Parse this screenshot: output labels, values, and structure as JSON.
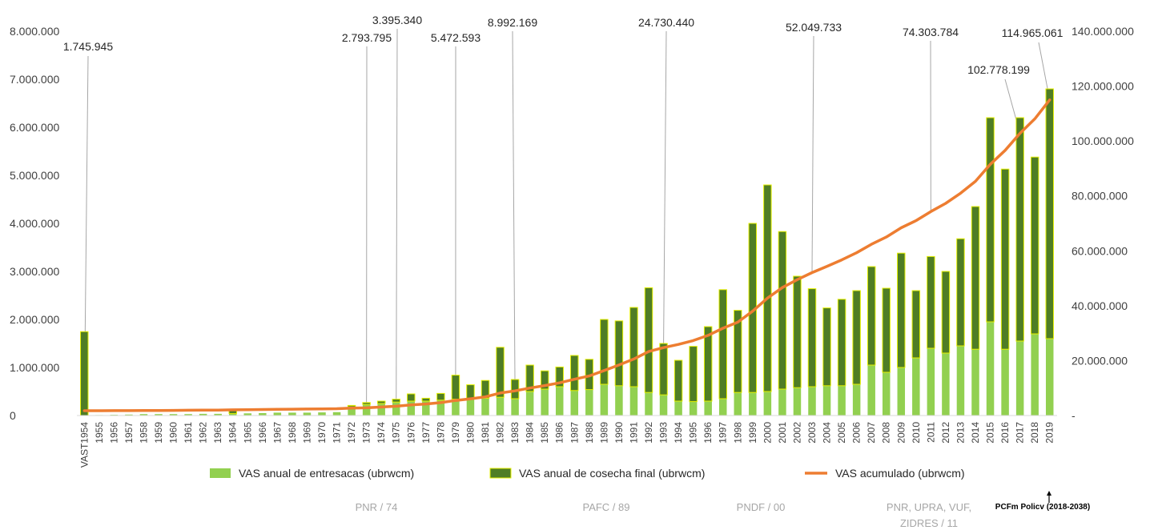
{
  "colors": {
    "entresacas": "#92d050",
    "cosecha": "#4f7d25",
    "cosecha_border": "#e6f000",
    "acumulado": "#ed7d31",
    "callout_line": "#a6a6a6"
  },
  "chart_data": {
    "type": "bar",
    "categories": [
      "VAST1954",
      "1955",
      "1956",
      "1957",
      "1958",
      "1959",
      "1960",
      "1961",
      "1962",
      "1963",
      "1964",
      "1965",
      "1966",
      "1967",
      "1968",
      "1969",
      "1970",
      "1971",
      "1972",
      "1973",
      "1974",
      "1975",
      "1976",
      "1977",
      "1978",
      "1979",
      "1980",
      "1981",
      "1982",
      "1983",
      "1984",
      "1985",
      "1986",
      "1987",
      "1988",
      "1989",
      "1990",
      "1991",
      "1992",
      "1993",
      "1994",
      "1995",
      "1996",
      "1997",
      "1998",
      "1999",
      "2000",
      "2001",
      "2002",
      "2003",
      "2004",
      "2005",
      "2006",
      "2007",
      "2008",
      "2009",
      "2010",
      "2011",
      "2012",
      "2013",
      "2014",
      "2015",
      "2016",
      "2017",
      "2018",
      "2019"
    ],
    "series": [
      {
        "name": "VAS anual de entresacas (ubrwcm)",
        "type": "bar",
        "axis": "left",
        "values": [
          0,
          10000,
          15000,
          20000,
          30000,
          30000,
          30000,
          30000,
          35000,
          35000,
          40000,
          45000,
          50000,
          60000,
          60000,
          60000,
          65000,
          70000,
          180000,
          230000,
          250000,
          280000,
          300000,
          300000,
          320000,
          340000,
          360000,
          360000,
          380000,
          350000,
          500000,
          550000,
          600000,
          520000,
          540000,
          650000,
          620000,
          600000,
          480000,
          430000,
          300000,
          290000,
          300000,
          350000,
          480000,
          480000,
          500000,
          550000,
          580000,
          600000,
          620000,
          620000,
          650000,
          1050000,
          900000,
          1000000,
          1200000,
          1400000,
          1300000,
          1450000,
          1380000,
          1950000,
          1380000,
          1550000,
          1700000,
          1600000
        ]
      },
      {
        "name": "VAS anual  de cosecha final (ubrwcm)",
        "type": "bar",
        "axis": "left",
        "values": [
          1745945,
          0,
          0,
          0,
          0,
          0,
          0,
          0,
          0,
          0,
          60000,
          0,
          0,
          0,
          0,
          0,
          0,
          0,
          30000,
          40000,
          50000,
          60000,
          150000,
          60000,
          140000,
          500000,
          280000,
          370000,
          1040000,
          400000,
          550000,
          380000,
          410000,
          730000,
          630000,
          1350000,
          1350000,
          1650000,
          2180000,
          1070000,
          850000,
          1150000,
          1550000,
          2270000,
          1710000,
          3520000,
          4300000,
          3280000,
          2320000,
          2040000,
          1620000,
          1800000,
          1950000,
          2050000,
          1750000,
          2380000,
          1400000,
          1910000,
          1700000,
          2230000,
          2970000,
          4250000,
          3750000,
          4650000,
          3680000,
          5200000
        ]
      },
      {
        "name": "VAS acumulado (ubrwcm)",
        "type": "line",
        "axis": "right",
        "values": [
          1745945,
          1755945,
          1770945,
          1790945,
          1820945,
          1850945,
          1880945,
          1910945,
          1945945,
          1980945,
          2080945,
          2125945,
          2175945,
          2235945,
          2295945,
          2355945,
          2420945,
          2490945,
          2700945,
          2793795,
          3093795,
          3395340,
          3850000,
          4200000,
          4700000,
          5472593,
          6100000,
          6800000,
          8200000,
          8992169,
          10000000,
          10900000,
          11900000,
          13200000,
          14400000,
          16400000,
          18400000,
          20600000,
          23300000,
          24730440,
          25900000,
          27300000,
          29200000,
          31800000,
          34000000,
          38000000,
          42800000,
          46600000,
          49500000,
          52049733,
          54300000,
          56700000,
          59300000,
          62400000,
          65000000,
          68400000,
          71000000,
          74303784,
          77300000,
          81000000,
          85300000,
          91500000,
          96600000,
          102778199,
          108100000,
          114965061
        ]
      }
    ],
    "y_left": {
      "min": 0,
      "max": 8000000,
      "ticks": [
        "0",
        "1.000.000",
        "2.000.000",
        "3.000.000",
        "4.000.000",
        "5.000.000",
        "6.000.000",
        "7.000.000",
        "8.000.000"
      ]
    },
    "y_right": {
      "min": 0,
      "max": 140000000,
      "ticks": [
        "-",
        "20.000.000",
        "40.000.000",
        "60.000.000",
        "80.000.000",
        "100.000.000",
        "120.000.000",
        "140.000.000"
      ]
    },
    "callouts": [
      {
        "category": "VAST1954",
        "text": "1.745.945"
      },
      {
        "category": "1973",
        "text": "2.793.795"
      },
      {
        "category": "1975",
        "text": "3.395.340"
      },
      {
        "category": "1979",
        "text": "5.472.593"
      },
      {
        "category": "1983",
        "text": "8.992.169"
      },
      {
        "category": "1993",
        "text": "24.730.440"
      },
      {
        "category": "2003",
        "text": "52.049.733"
      },
      {
        "category": "2011",
        "text": "74.303.784"
      },
      {
        "category": "2017",
        "text": "102.778.199"
      },
      {
        "category": "2019",
        "text": "114.965.061"
      }
    ],
    "legend": [
      {
        "label": "VAS anual de entresacas (ubrwcm)",
        "kind": "bar-light"
      },
      {
        "label": "VAS anual  de cosecha final (ubrwcm)",
        "kind": "bar-dark"
      },
      {
        "label": "VAS acumulado (ubrwcm)",
        "kind": "line"
      }
    ],
    "legend_position": "bottom",
    "periods": [
      {
        "lines": [
          "PNR / 74"
        ]
      },
      {
        "lines": [
          "PAFC / 89"
        ]
      },
      {
        "lines": [
          "PNDF / 00"
        ]
      },
      {
        "lines": [
          "PNR, UPRA, VUF,",
          "ZIDRES / 11"
        ]
      }
    ],
    "plan_label": "PCFm Policv (2018-2038)",
    "grid": false
  }
}
